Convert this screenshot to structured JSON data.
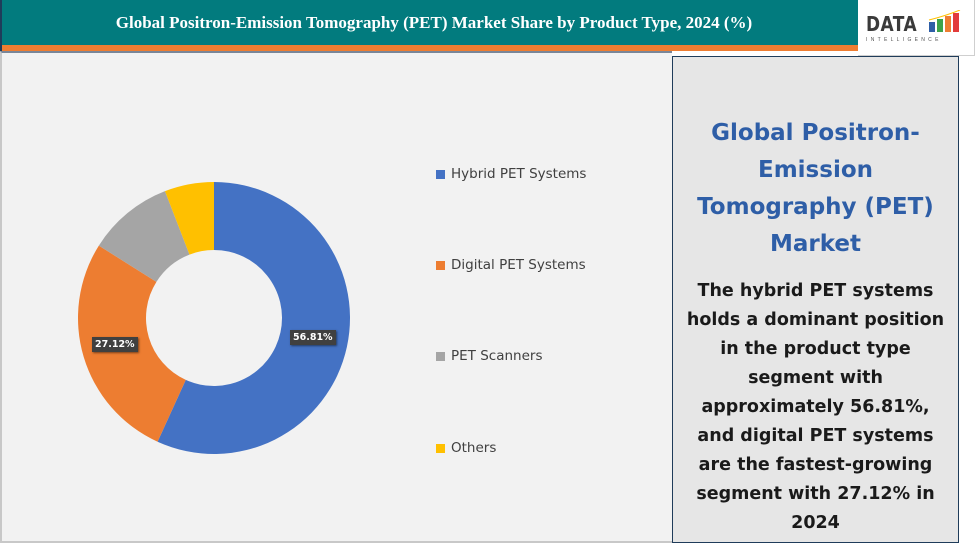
{
  "header": {
    "title": "Global Positron-Emission Tomography (PET) Market Share by Product Type, 2024 (%)",
    "bg_color": "#027b7e",
    "accent_color": "#ee7d31"
  },
  "logo": {
    "text": "DATA",
    "subtext": "INTELLIGENCE"
  },
  "side_panel": {
    "title": "Global Positron-Emission Tomography (PET) Market",
    "description": "The hybrid PET systems holds a dominant position in the product type segment with approximately 56.81%, and digital PET systems are the fastest-growing segment with 27.12% in 2024"
  },
  "data_labels": {
    "hybrid": "56.81%",
    "digital": "27.12%"
  },
  "legend": [
    {
      "label": "Hybrid PET Systems",
      "color": "#4472c4"
    },
    {
      "label": "Digital PET Systems",
      "color": "#ed7d31"
    },
    {
      "label": "PET Scanners",
      "color": "#a5a5a5"
    },
    {
      "label": "Others",
      "color": "#ffc000"
    }
  ],
  "chart_data": {
    "type": "pie",
    "subtype": "donut",
    "title": "Global Positron-Emission Tomography (PET) Market Share by Product Type, 2024 (%)",
    "categories": [
      "Hybrid PET Systems",
      "Digital PET Systems",
      "PET Scanners",
      "Others"
    ],
    "values": [
      56.81,
      27.12,
      10.2,
      5.87
    ],
    "colors": [
      "#4472c4",
      "#ed7d31",
      "#a5a5a5",
      "#ffc000"
    ],
    "data_labels": [
      "56.81%",
      "27.12%",
      "",
      ""
    ],
    "legend_position": "right",
    "unit": "%"
  }
}
